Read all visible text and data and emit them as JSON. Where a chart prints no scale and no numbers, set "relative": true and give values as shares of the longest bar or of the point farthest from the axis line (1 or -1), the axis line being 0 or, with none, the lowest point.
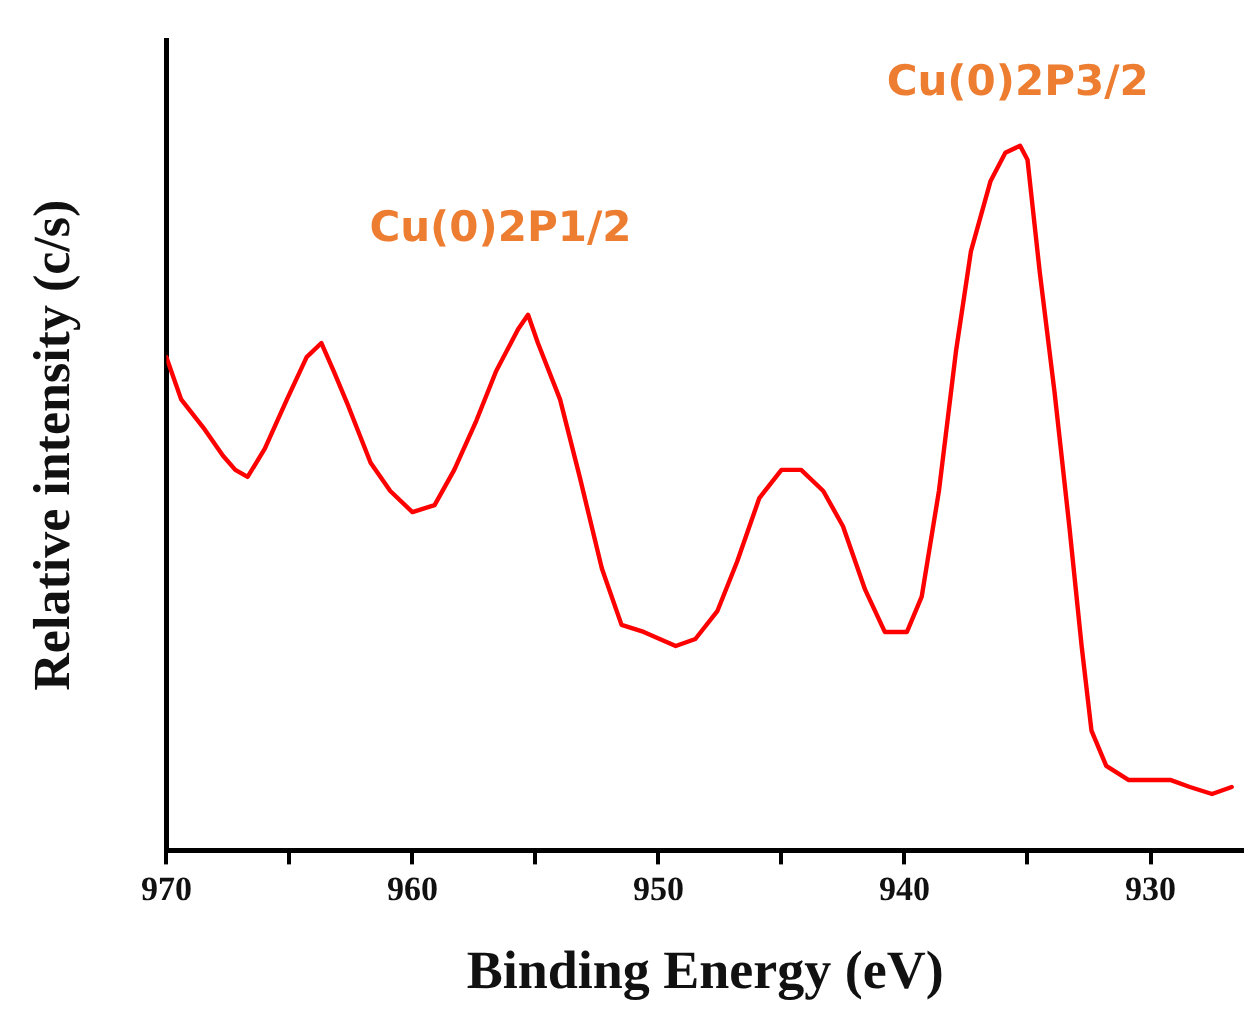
{
  "chart_data": {
    "type": "line",
    "xlabel": "Binding Energy (eV)",
    "ylabel": "Relative intensity (c/s)",
    "relative": true,
    "xlim": [
      970,
      926.2
    ],
    "xticks": [
      970,
      {
        "value": 965,
        "label": null
      },
      960,
      {
        "value": 955,
        "label": null
      },
      950,
      {
        "value": 945,
        "label": null
      },
      940,
      {
        "value": 935,
        "label": null
      },
      930
    ],
    "grid": false,
    "legend": false,
    "marker": "none",
    "line_style": "solid",
    "annotations": [
      "Cu(0)2P1/2",
      "Cu(0)2P3/2"
    ],
    "series": [
      {
        "color": "#ff0000",
        "x": [
          970,
          969.4,
          968.5,
          967.7,
          967.2,
          966.7,
          966.0,
          965.1,
          964.3,
          963.7,
          963.2,
          962.6,
          961.7,
          960.9,
          960.0,
          959.1,
          958.3,
          957.4,
          956.6,
          955.7,
          955.3,
          954.9,
          954.0,
          953.2,
          952.3,
          951.5,
          950.6,
          949.3,
          948.5,
          947.6,
          946.8,
          945.9,
          945.0,
          944.2,
          943.3,
          942.5,
          941.6,
          940.8,
          939.9,
          939.3,
          938.6,
          937.9,
          937.3,
          936.5,
          935.9,
          935.3,
          935.0,
          934.5,
          933.9,
          933.3,
          932.8,
          932.4,
          931.8,
          930.9,
          930.1,
          929.2,
          928.4,
          927.5,
          926.7
        ],
        "values": [
          0.7,
          0.64,
          0.6,
          0.56,
          0.54,
          0.53,
          0.57,
          0.64,
          0.7,
          0.72,
          0.68,
          0.63,
          0.55,
          0.51,
          0.48,
          0.49,
          0.54,
          0.61,
          0.68,
          0.74,
          0.76,
          0.72,
          0.64,
          0.53,
          0.4,
          0.32,
          0.31,
          0.29,
          0.3,
          0.34,
          0.41,
          0.5,
          0.54,
          0.54,
          0.51,
          0.46,
          0.37,
          0.31,
          0.31,
          0.36,
          0.51,
          0.71,
          0.85,
          0.95,
          0.99,
          1,
          0.98,
          0.82,
          0.65,
          0.46,
          0.29,
          0.17,
          0.12,
          0.1,
          0.1,
          0.1,
          0.09,
          0.08,
          0.09
        ]
      }
    ]
  }
}
